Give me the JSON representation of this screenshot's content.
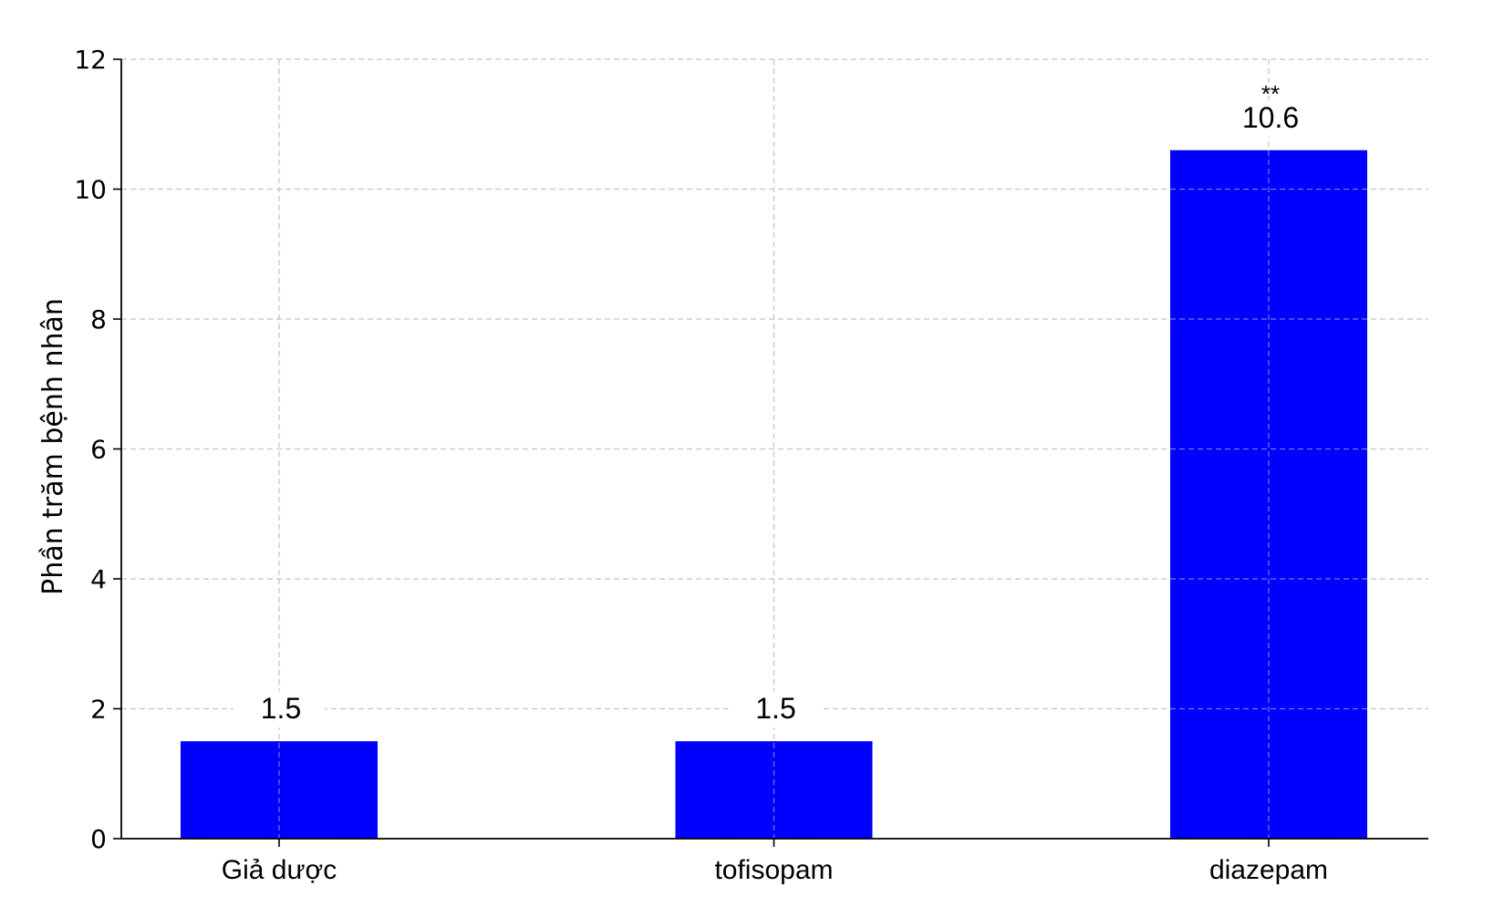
{
  "chart_data": {
    "type": "bar",
    "title": "",
    "xlabel": "",
    "ylabel": "Phần trăm bệnh nhân",
    "categories": [
      "Giả dược",
      "tofisopam",
      "diazepam"
    ],
    "values": [
      1.5,
      1.5,
      10.6
    ],
    "data_labels": [
      "1.5",
      "1.5",
      "10.6"
    ],
    "annotations": [
      "",
      "",
      "**"
    ],
    "ylim": [
      0,
      12
    ],
    "yticks": [
      0,
      2,
      4,
      6,
      8,
      10,
      12
    ],
    "grid": true,
    "legend": "none",
    "bar_color": "#0000ff",
    "grid_color": "#c8c8c8"
  }
}
